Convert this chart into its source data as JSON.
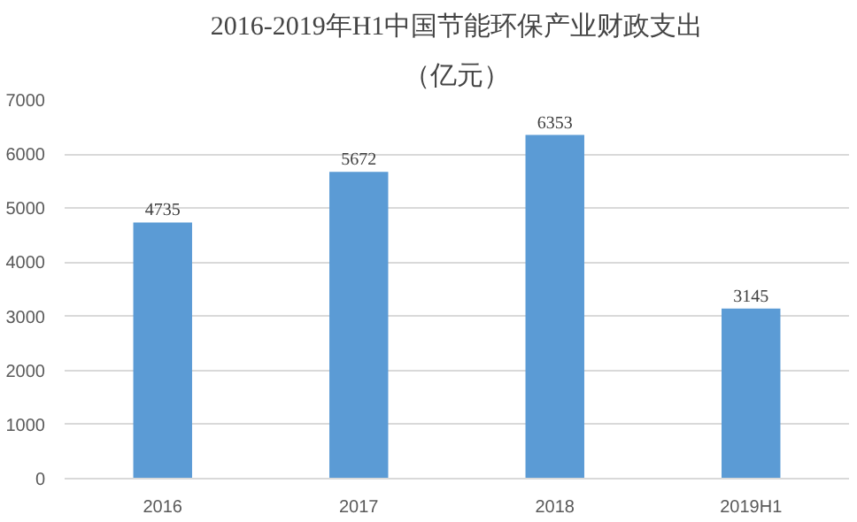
{
  "chart_data": {
    "type": "bar",
    "title": "2016-2019年H1中国节能环保产业财政支出",
    "subtitle": "（亿元）",
    "categories": [
      "2016",
      "2017",
      "2018",
      "2019H1"
    ],
    "values": [
      4735,
      5672,
      6353,
      3145
    ],
    "color": "#5b9bd5",
    "data_labels": true,
    "grid": "y",
    "ylim": [
      0,
      7000
    ],
    "yticks": [
      0,
      1000,
      2000,
      3000,
      4000,
      5000,
      6000,
      7000
    ]
  }
}
